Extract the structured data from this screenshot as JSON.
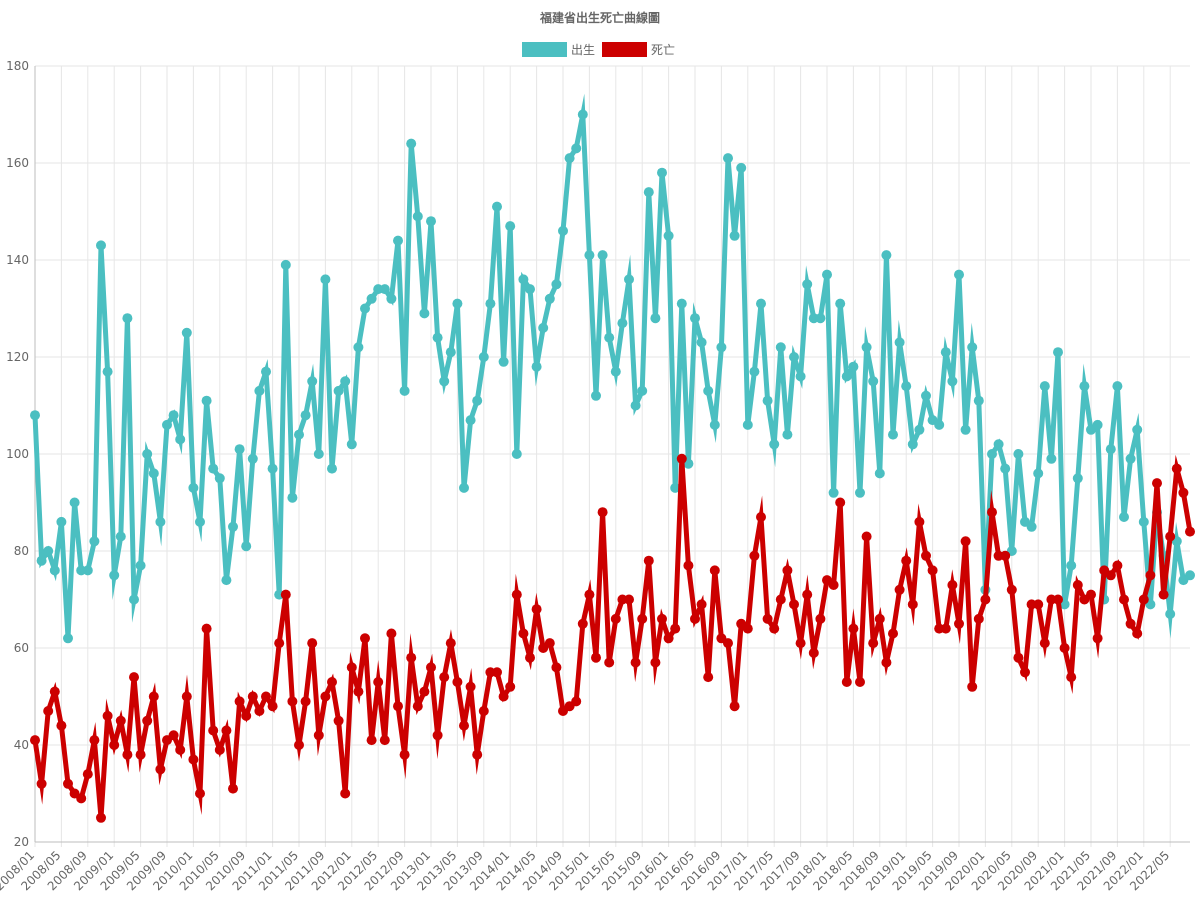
{
  "chart_data": {
    "type": "line",
    "title": "福建省出生死亡曲線圖",
    "xlabel": "",
    "ylabel": "",
    "ylim": [
      20,
      180
    ],
    "yticks": [
      20,
      40,
      60,
      80,
      100,
      120,
      140,
      160,
      180
    ],
    "grid": true,
    "legend_position": "top",
    "x_start": "2008/01",
    "x_end": "2022/07",
    "x_tick_labels": [
      "2008/01",
      "2008/05",
      "2008/09",
      "2009/01",
      "2009/05",
      "2009/09",
      "2010/01",
      "2010/05",
      "2010/09",
      "2011/01",
      "2011/05",
      "2011/09",
      "2012/01",
      "2012/05",
      "2012/09",
      "2013/01",
      "2013/05",
      "2013/09",
      "2014/01",
      "2014/05",
      "2014/09",
      "2015/01",
      "2015/05",
      "2015/09",
      "2016/01",
      "2016/05",
      "2016/09",
      "2017/01",
      "2017/05",
      "2017/09",
      "2018/01",
      "2018/05",
      "2018/09",
      "2019/01",
      "2019/05",
      "2019/09",
      "2020/01",
      "2020/05",
      "2020/09",
      "2021/01",
      "2021/05",
      "2021/09",
      "2022/01",
      "2022/05"
    ],
    "series": [
      {
        "name": "出生",
        "color": "#4bbfc1",
        "values": [
          108,
          78,
          80,
          76,
          86,
          62,
          90,
          76,
          76,
          82,
          143,
          117,
          75,
          83,
          128,
          70,
          77,
          100,
          96,
          86,
          106,
          108,
          103,
          125,
          93,
          86,
          111,
          97,
          95,
          74,
          85,
          101,
          81,
          99,
          113,
          117,
          97,
          71,
          139,
          91,
          104,
          108,
          115,
          100,
          136,
          97,
          113,
          115,
          102,
          122,
          130,
          132,
          134,
          134,
          132,
          144,
          113,
          164,
          149,
          129,
          148,
          124,
          115,
          121,
          131,
          93,
          107,
          111,
          120,
          131,
          151,
          119,
          147,
          100,
          136,
          134,
          118,
          126,
          132,
          135,
          146,
          161,
          163,
          170,
          141,
          112,
          141,
          124,
          117,
          127,
          136,
          110,
          113,
          154,
          128,
          158,
          145,
          93,
          131,
          98,
          128,
          123,
          113,
          106,
          122,
          161,
          145,
          159,
          106,
          117,
          131,
          111,
          102,
          122,
          104,
          120,
          116,
          135,
          128,
          128,
          137,
          92,
          131,
          116,
          118,
          92,
          122,
          115,
          96,
          141,
          104,
          123,
          114,
          102,
          105,
          112,
          107,
          106,
          121,
          115,
          137,
          105,
          122,
          111,
          72,
          100,
          102,
          97,
          80,
          100,
          86,
          85,
          96,
          114,
          99,
          121,
          69,
          77,
          95,
          114,
          105,
          106,
          70,
          101,
          114,
          87,
          99,
          105,
          86,
          69,
          88,
          79,
          67,
          82,
          74,
          75
        ]
      },
      {
        "name": "死亡",
        "color": "#cc0000",
        "values": [
          41,
          32,
          47,
          51,
          44,
          32,
          30,
          29,
          34,
          41,
          25,
          46,
          40,
          45,
          38,
          54,
          38,
          45,
          50,
          35,
          41,
          42,
          39,
          50,
          37,
          30,
          64,
          43,
          39,
          43,
          31,
          49,
          46,
          50,
          47,
          50,
          48,
          61,
          71,
          49,
          40,
          49,
          61,
          42,
          50,
          53,
          45,
          30,
          56,
          51,
          62,
          41,
          53,
          41,
          63,
          48,
          38,
          58,
          48,
          51,
          56,
          42,
          54,
          61,
          53,
          44,
          52,
          38,
          47,
          55,
          55,
          50,
          52,
          71,
          63,
          58,
          68,
          60,
          61,
          56,
          47,
          48,
          49,
          65,
          71,
          58,
          88,
          57,
          66,
          70,
          70,
          57,
          66,
          78,
          57,
          66,
          62,
          64,
          99,
          77,
          66,
          69,
          54,
          76,
          62,
          61,
          48,
          65,
          64,
          79,
          87,
          66,
          64,
          70,
          76,
          69,
          61,
          71,
          59,
          66,
          74,
          73,
          90,
          53,
          64,
          53,
          83,
          61,
          66,
          57,
          63,
          72,
          78,
          69,
          86,
          79,
          76,
          64,
          64,
          73,
          65,
          82,
          52,
          66,
          70,
          88,
          79,
          79,
          72,
          58,
          55,
          69,
          69,
          61,
          70,
          70,
          60,
          54,
          73,
          70,
          71,
          62,
          76,
          75,
          77,
          70,
          65,
          63,
          70,
          75,
          94,
          71,
          83,
          97,
          92,
          84
        ]
      }
    ]
  }
}
